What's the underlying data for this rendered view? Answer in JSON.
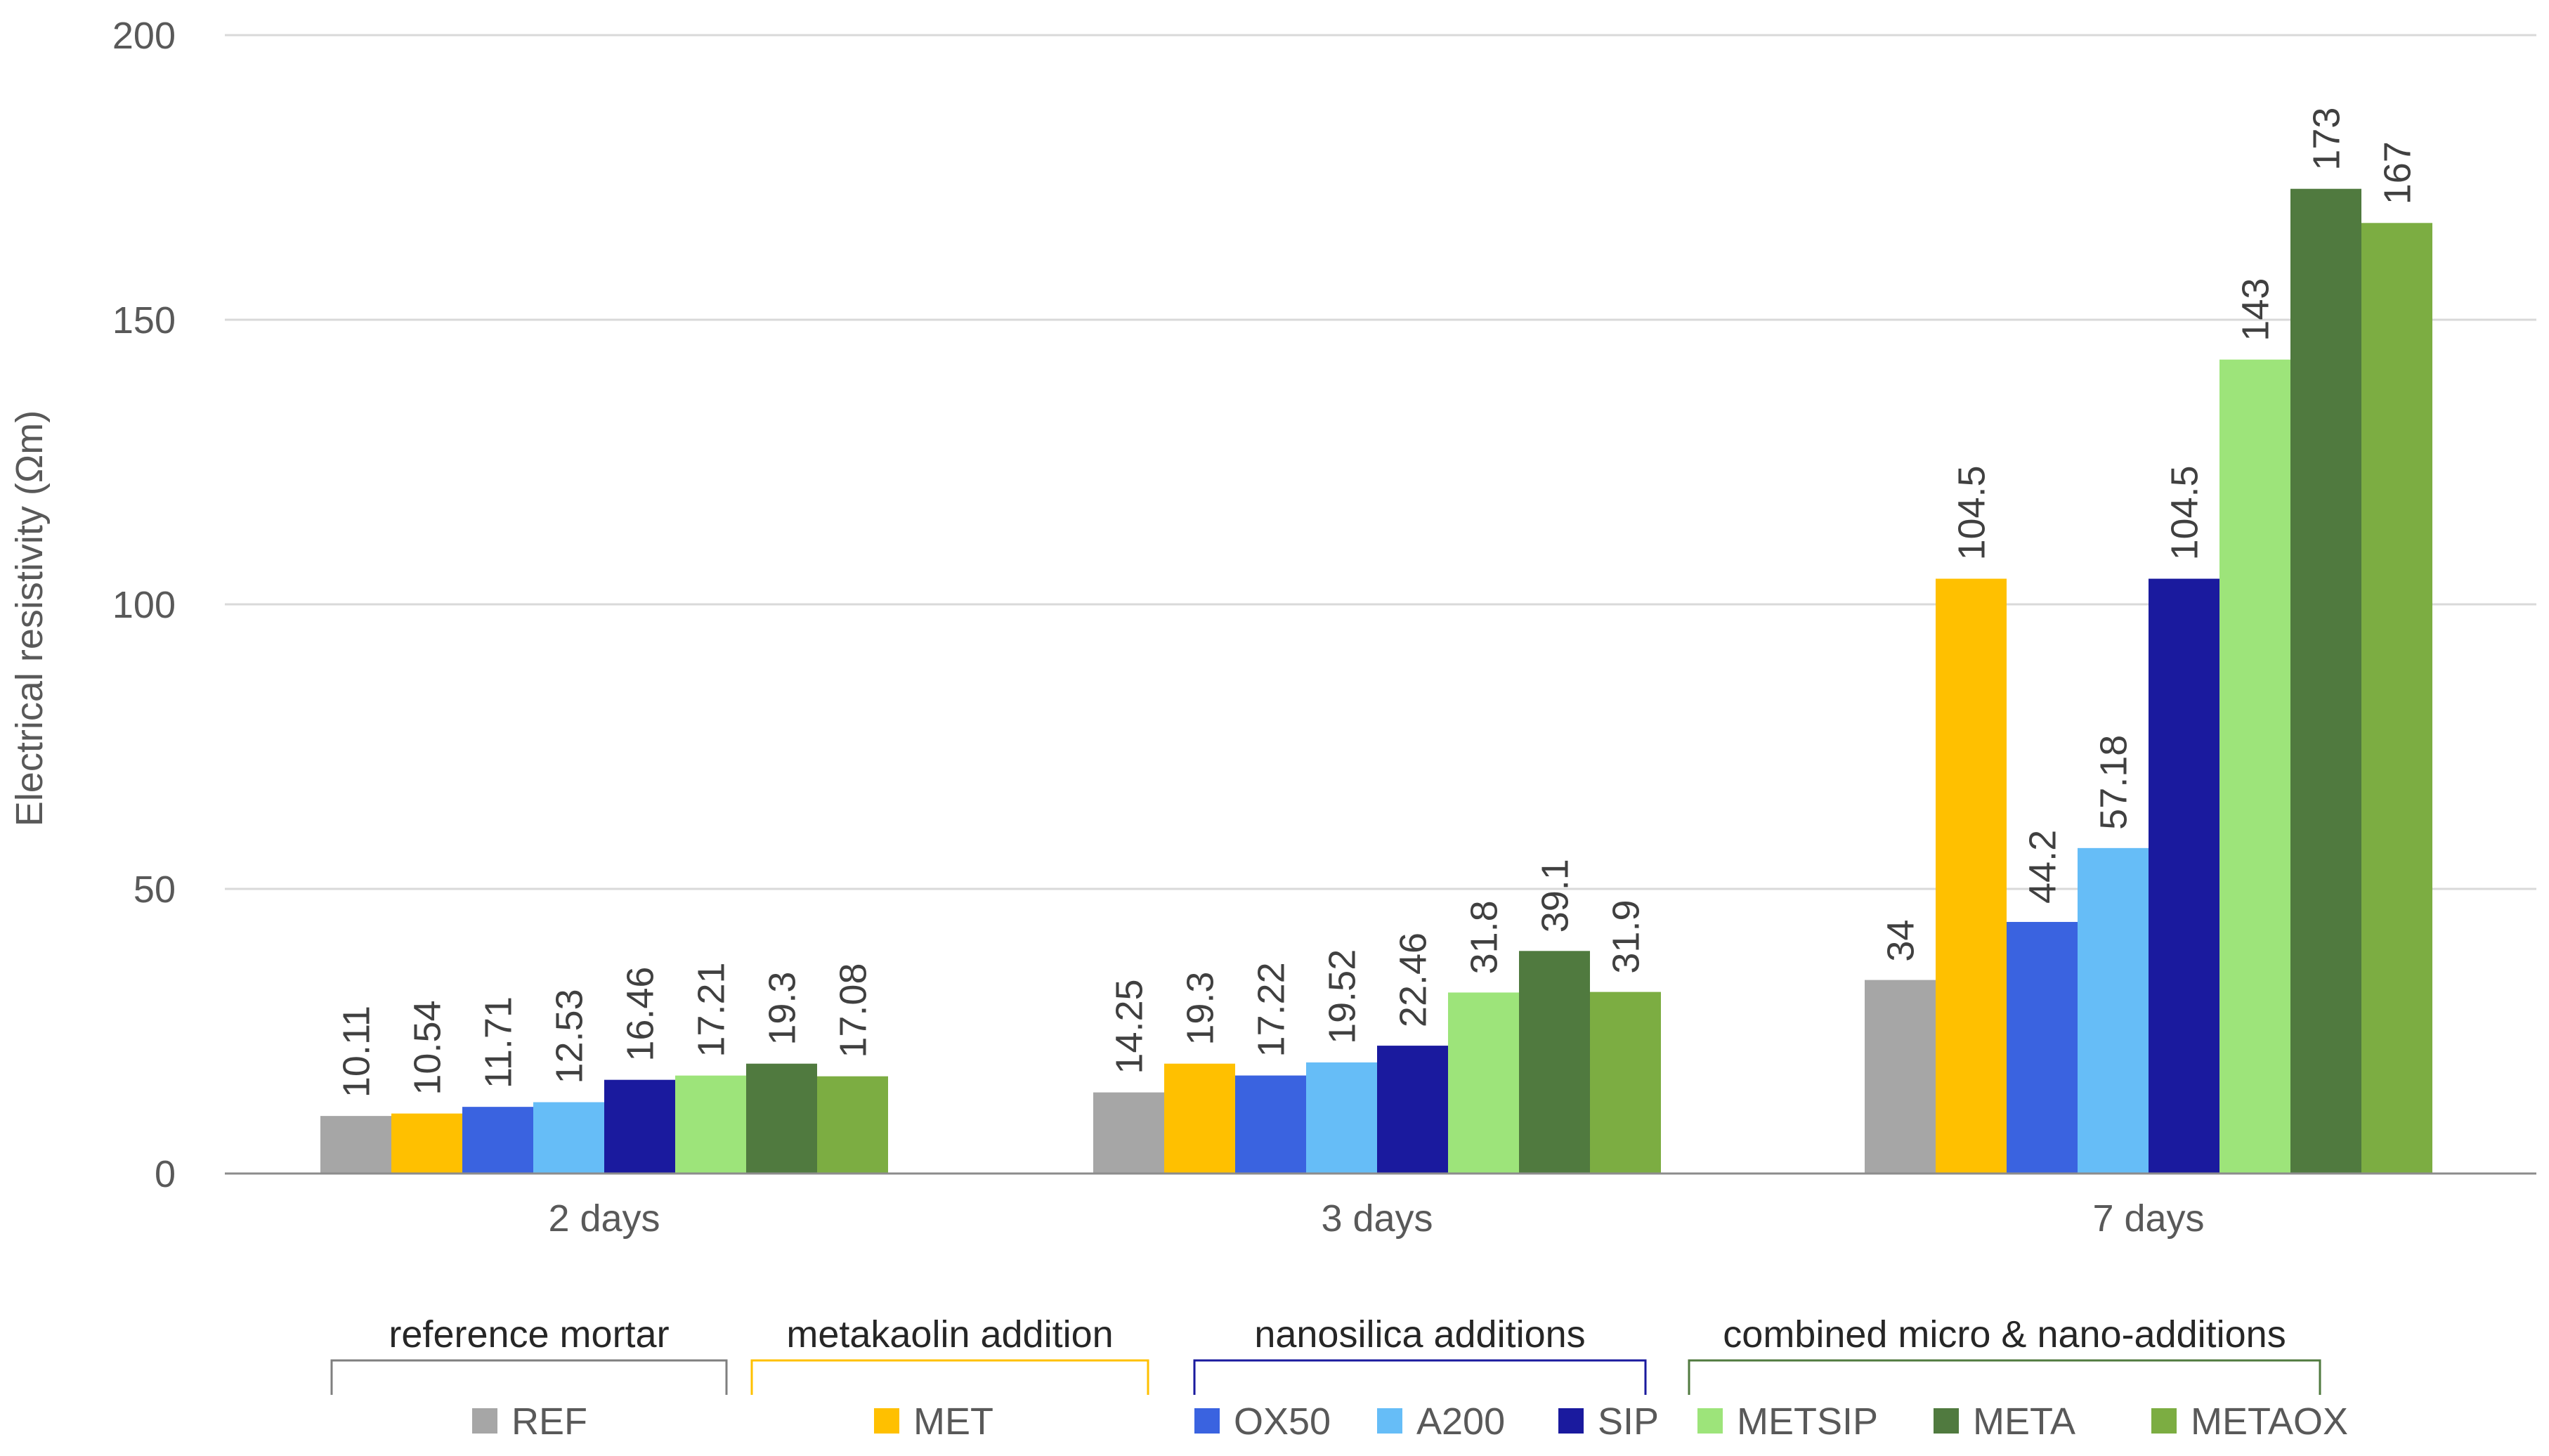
{
  "chart_data": {
    "type": "bar",
    "title": "",
    "xlabel": "",
    "ylabel": "Electrical resistivity (Ωm)",
    "ylim": [
      0,
      200
    ],
    "yticks": [
      0,
      50,
      100,
      150,
      200
    ],
    "grid": true,
    "categories": [
      "2 days",
      "3 days",
      "7 days"
    ],
    "series": [
      {
        "name": "REF",
        "color": "#a6a6a6",
        "values": [
          10.11,
          14.25,
          34
        ],
        "labels": [
          "10.11",
          "14.25",
          "34"
        ]
      },
      {
        "name": "MET",
        "color": "#ffc000",
        "values": [
          10.54,
          19.3,
          104.5
        ],
        "labels": [
          "10.54",
          "19.3",
          "104.5"
        ]
      },
      {
        "name": "OX50",
        "color": "#3a63e0",
        "values": [
          11.71,
          17.22,
          44.2
        ],
        "labels": [
          "11.71",
          "17.22",
          "44.2"
        ]
      },
      {
        "name": "A200",
        "color": "#66bdf7",
        "values": [
          12.53,
          19.52,
          57.18
        ],
        "labels": [
          "12.53",
          "19.52",
          "57.18"
        ]
      },
      {
        "name": "SIP",
        "color": "#1a1a9e",
        "values": [
          16.46,
          22.46,
          104.5
        ],
        "labels": [
          "16.46",
          "22.46",
          "104.5"
        ]
      },
      {
        "name": "METSIP",
        "color": "#9de47a",
        "values": [
          17.21,
          31.8,
          143
        ],
        "labels": [
          "17.21",
          "31.8",
          "143"
        ]
      },
      {
        "name": "META",
        "color": "#507a3f",
        "values": [
          19.3,
          39.1,
          173
        ],
        "labels": [
          "19.3",
          "39.1",
          "173"
        ]
      },
      {
        "name": "METAOX",
        "color": "#7cad42",
        "values": [
          17.08,
          31.9,
          167
        ],
        "labels": [
          "17.08",
          "31.9",
          "167"
        ]
      }
    ],
    "legend_groups": [
      {
        "title": "reference mortar",
        "color": "#7f7f7f",
        "members": [
          "REF"
        ]
      },
      {
        "title": "metakaolin addition",
        "color": "#ffc000",
        "members": [
          "MET"
        ]
      },
      {
        "title": "nanosilica additions",
        "color": "#1a1a9e",
        "members": [
          "OX50",
          "A200",
          "SIP"
        ]
      },
      {
        "title": "combined micro & nano-additions",
        "color": "#507a3f",
        "members": [
          "METSIP",
          "META",
          "METAOX"
        ]
      }
    ],
    "legend_position": "bottom"
  }
}
